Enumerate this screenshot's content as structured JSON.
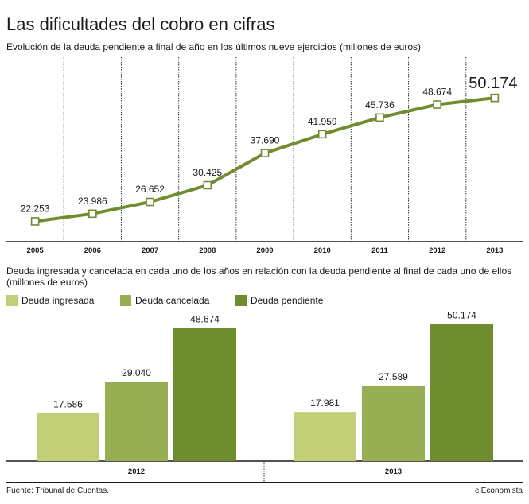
{
  "title": "Las dificultades del cobro en cifras",
  "subtitle": "Evolución de la deuda pendiente a final de año en los últimos nueve ejercicios (millones de euros)",
  "colors": {
    "line": "#6f8d2f",
    "ingresada": "#c3cf77",
    "cancelada": "#97ae52",
    "pendiente": "#6f8d2f"
  },
  "chart_data": [
    {
      "type": "line",
      "categories": [
        "2005",
        "2006",
        "2007",
        "2008",
        "2009",
        "2010",
        "2011",
        "2012",
        "2013"
      ],
      "series": [
        {
          "values": [
            22253,
            23986,
            26652,
            30425,
            37690,
            41959,
            45736,
            48674,
            50174
          ],
          "labels": [
            "22.253",
            "23.986",
            "26.652",
            "30.425",
            "37.690",
            "41.959",
            "45.736",
            "48.674",
            "50.174"
          ]
        }
      ],
      "ylim": [
        20000,
        52000
      ],
      "grid": "vertical dashed separators"
    },
    {
      "type": "bar",
      "title": "Deuda ingresada y cancelada en cada uno de los años en relación con la deuda pendiente al final de cada uno de ellos (millones de euros)",
      "categories": [
        "2012",
        "2013"
      ],
      "series": [
        {
          "name": "Deuda ingresada",
          "values": [
            17586,
            17981
          ],
          "labels": [
            "17.586",
            "17.981"
          ]
        },
        {
          "name": "Deuda cancelada",
          "values": [
            29040,
            27589
          ],
          "labels": [
            "29.040",
            "27.589"
          ]
        },
        {
          "name": "Deuda pendiente",
          "values": [
            48674,
            50174
          ],
          "labels": [
            "48.674",
            "50.174"
          ]
        }
      ],
      "ylim": [
        0,
        55000
      ],
      "legend": "top-left"
    }
  ],
  "footer": {
    "source": "Fuente: Tribunal de Cuentas.",
    "brand": "elEconomista"
  }
}
